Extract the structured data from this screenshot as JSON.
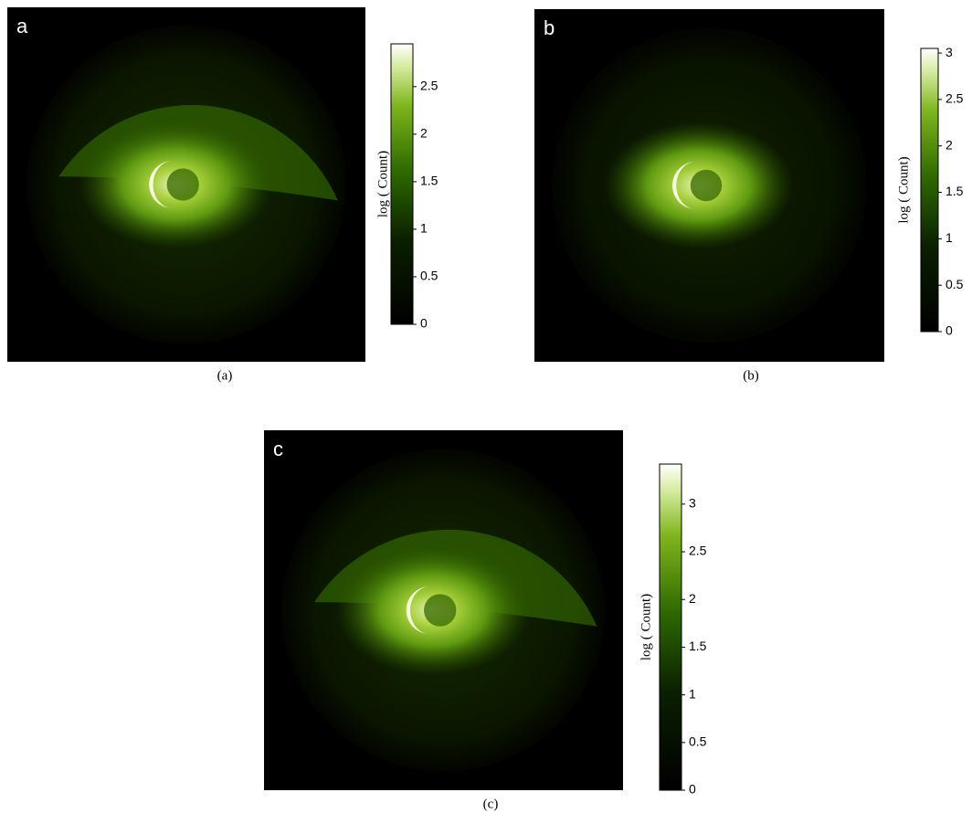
{
  "chart_data": [
    {
      "type": "heatmap",
      "panel_label": "a",
      "caption": "(a)",
      "colorbar_label": "log ( Count)",
      "clim": [
        0,
        2.95
      ],
      "cticks": [
        0,
        0.5,
        1,
        1.5,
        2,
        2.5
      ]
    },
    {
      "type": "heatmap",
      "panel_label": "b",
      "caption": "(b)",
      "colorbar_label": "log ( Count)",
      "clim": [
        0,
        3.05
      ],
      "cticks": [
        0,
        0.5,
        1,
        1.5,
        2,
        2.5,
        3
      ]
    },
    {
      "type": "heatmap",
      "panel_label": "c",
      "caption": "(c)",
      "colorbar_label": "log ( Count)",
      "clim": [
        0,
        3.42
      ],
      "cticks": [
        0,
        0.5,
        1,
        1.5,
        2,
        2.5,
        3
      ]
    }
  ]
}
